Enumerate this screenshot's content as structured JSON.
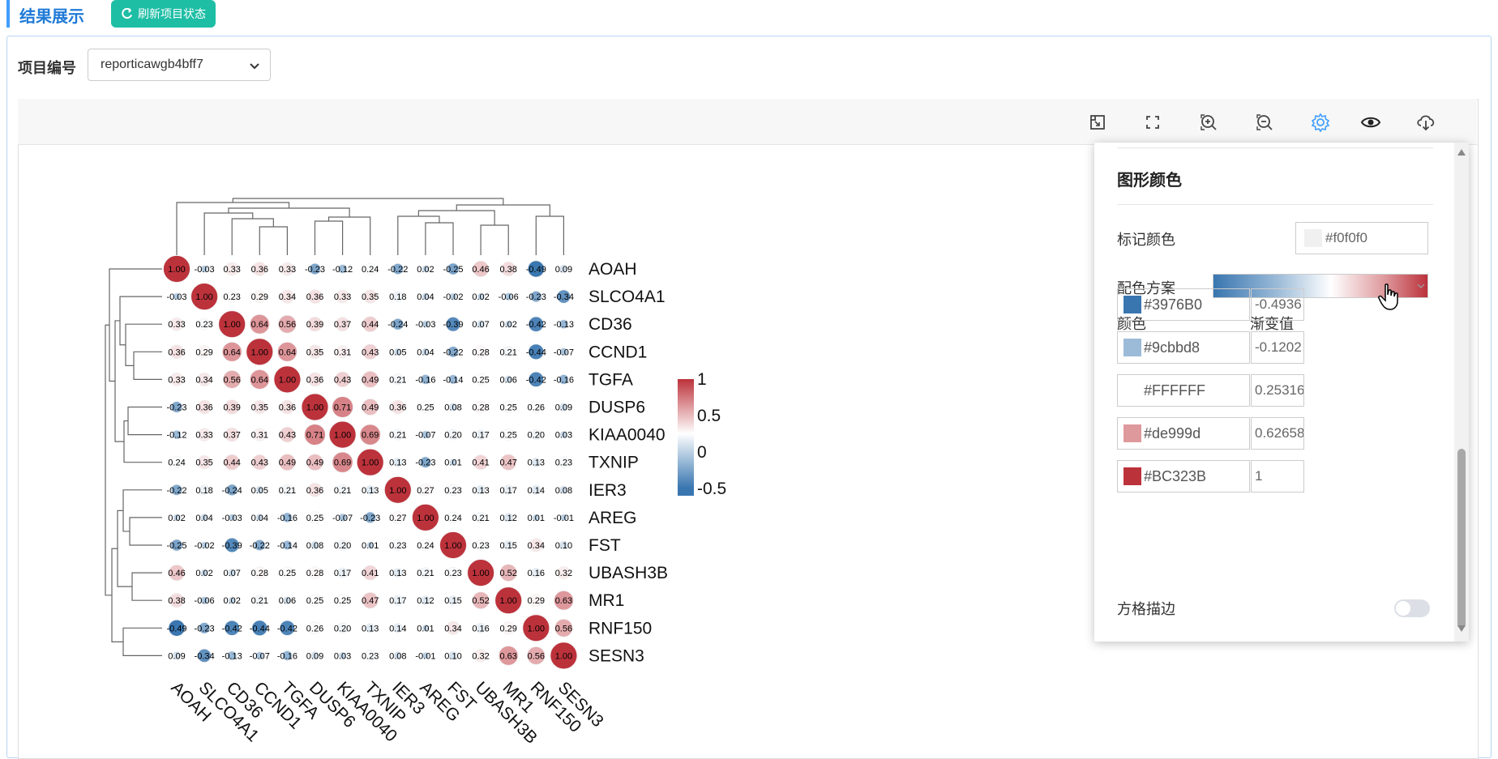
{
  "header": {
    "title": "结果展示",
    "refresh_label": "刷新项目状态"
  },
  "project": {
    "label": "项目编号",
    "selected": "reporticawgb4bff7"
  },
  "toolbar": {
    "icons": [
      "restore-icon",
      "fullscreen-icon",
      "zoom-in-icon",
      "zoom-out-icon",
      "settings-icon",
      "eye-icon",
      "download-icon"
    ],
    "accent": "#409eff"
  },
  "settings": {
    "title": "图形颜色",
    "mark_color_label": "标记颜色",
    "mark_color_value": "#f0f0f0",
    "scheme_label": "配色方案",
    "color_header": "颜色",
    "gradient_header": "渐变值",
    "stops": [
      {
        "color": "#3976B0",
        "value": "-0.4936"
      },
      {
        "color": "#9cbbd8",
        "value": "-0.1202"
      },
      {
        "color": "#FFFFFF",
        "value": "0.25316"
      },
      {
        "color": "#de999d",
        "value": "0.62658"
      },
      {
        "color": "#BC323B",
        "value": "1"
      }
    ],
    "border_label": "方格描边",
    "border_on": false
  },
  "chart_data": {
    "type": "heatmap",
    "genes": [
      "AOAH",
      "SLCO4A1",
      "CD36",
      "CCND1",
      "TGFA",
      "DUSP6",
      "KIAA0040",
      "TXNIP",
      "IER3",
      "AREG",
      "FST",
      "UBASH3B",
      "MR1",
      "RNF150",
      "SESN3"
    ],
    "matrix": [
      [
        1.0,
        -0.03,
        0.33,
        0.36,
        0.33,
        -0.23,
        -0.12,
        0.24,
        -0.22,
        0.02,
        -0.25,
        0.46,
        0.38,
        -0.49,
        0.09
      ],
      [
        -0.03,
        1.0,
        0.23,
        0.29,
        0.34,
        0.36,
        0.33,
        0.35,
        0.18,
        0.04,
        -0.02,
        0.02,
        -0.06,
        -0.23,
        -0.34
      ],
      [
        0.33,
        0.23,
        1.0,
        0.64,
        0.56,
        0.39,
        0.37,
        0.44,
        -0.24,
        -0.03,
        -0.39,
        0.07,
        0.02,
        -0.42,
        -0.13
      ],
      [
        0.36,
        0.29,
        0.64,
        1.0,
        0.64,
        0.35,
        0.31,
        0.43,
        0.05,
        0.04,
        -0.22,
        0.28,
        0.21,
        -0.44,
        -0.07
      ],
      [
        0.33,
        0.34,
        0.56,
        0.64,
        1.0,
        0.36,
        0.43,
        0.49,
        0.21,
        -0.16,
        -0.14,
        0.25,
        0.06,
        -0.42,
        -0.16
      ],
      [
        -0.23,
        0.36,
        0.39,
        0.35,
        0.36,
        1.0,
        0.71,
        0.49,
        0.36,
        0.25,
        0.08,
        0.28,
        0.25,
        0.26,
        0.09
      ],
      [
        -0.12,
        0.33,
        0.37,
        0.31,
        0.43,
        0.71,
        1.0,
        0.69,
        0.21,
        -0.07,
        0.2,
        0.17,
        0.25,
        0.2,
        0.03
      ],
      [
        0.24,
        0.35,
        0.44,
        0.43,
        0.49,
        0.49,
        0.69,
        1.0,
        0.13,
        -0.23,
        0.01,
        0.41,
        0.47,
        0.13,
        0.23
      ],
      [
        -0.22,
        0.18,
        -0.24,
        0.05,
        0.21,
        0.36,
        0.21,
        0.13,
        1.0,
        0.27,
        0.23,
        0.13,
        0.17,
        0.14,
        0.08
      ],
      [
        0.02,
        0.04,
        -0.03,
        0.04,
        -0.16,
        0.25,
        -0.07,
        -0.23,
        0.27,
        1.0,
        0.24,
        0.21,
        0.12,
        0.01,
        -0.01
      ],
      [
        -0.25,
        -0.02,
        -0.39,
        -0.22,
        -0.14,
        0.08,
        0.2,
        0.01,
        0.23,
        0.24,
        1.0,
        0.23,
        0.15,
        0.34,
        0.1
      ],
      [
        0.46,
        0.02,
        0.07,
        0.28,
        0.25,
        0.28,
        0.17,
        0.41,
        0.13,
        0.21,
        0.23,
        1.0,
        0.52,
        0.16,
        0.32
      ],
      [
        0.38,
        -0.06,
        0.02,
        0.21,
        0.06,
        0.25,
        0.25,
        0.47,
        0.17,
        0.12,
        0.15,
        0.52,
        1.0,
        0.29,
        0.63
      ],
      [
        -0.49,
        -0.23,
        -0.42,
        -0.44,
        -0.42,
        0.26,
        0.2,
        0.13,
        0.14,
        0.01,
        0.34,
        0.16,
        0.29,
        1.0,
        0.56
      ],
      [
        0.09,
        -0.34,
        -0.13,
        -0.07,
        -0.16,
        0.09,
        0.03,
        0.23,
        0.08,
        -0.01,
        0.1,
        0.32,
        0.63,
        0.56,
        1.0
      ]
    ],
    "legend": {
      "ticks": [
        "1",
        "0.5",
        "0",
        "-0.5"
      ],
      "values": [
        1,
        0.5,
        0,
        -0.5
      ]
    },
    "colorscale": [
      "#3976B0",
      "#9cbbd8",
      "#FFFFFF",
      "#de999d",
      "#BC323B"
    ],
    "stops": [
      -0.4936,
      -0.1202,
      0.25316,
      0.62658,
      1
    ]
  }
}
